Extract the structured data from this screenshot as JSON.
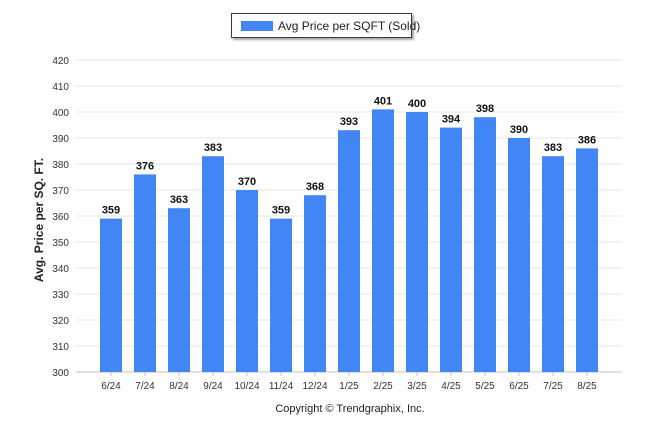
{
  "chart_data": {
    "type": "bar",
    "title": "",
    "xlabel": "",
    "ylabel": "Avg. Price per SQ. FT.",
    "ylim": [
      300,
      420
    ],
    "ytick_step": 10,
    "grid": true,
    "legend_position": "top-center",
    "categories": [
      "6/24",
      "7/24",
      "8/24",
      "9/24",
      "10/24",
      "11/24",
      "12/24",
      "1/25",
      "2/25",
      "3/25",
      "4/25",
      "5/25",
      "6/25",
      "7/25",
      "8/25"
    ],
    "series": [
      {
        "name": "Avg Price per SQFT (Sold)",
        "color": "#4285f4",
        "values": [
          359,
          376,
          363,
          383,
          370,
          359,
          368,
          393,
          401,
          400,
          394,
          398,
          390,
          383,
          386
        ]
      }
    ]
  },
  "footer": {
    "copyright": "Copyright © Trendgraphix, Inc."
  }
}
